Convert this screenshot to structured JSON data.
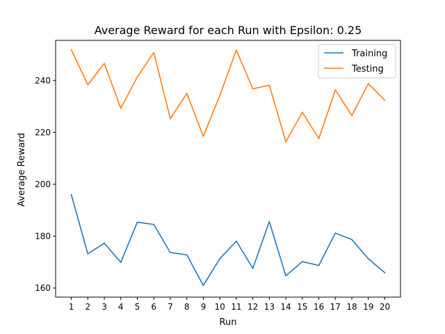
{
  "chart_data": {
    "type": "line",
    "title": "Average Reward for each Run with Epsilon: 0.25",
    "xlabel": "Run",
    "ylabel": "Average Reward",
    "x": [
      1,
      2,
      3,
      4,
      5,
      6,
      7,
      8,
      9,
      10,
      11,
      12,
      13,
      14,
      15,
      16,
      17,
      18,
      19,
      20
    ],
    "xticks": [
      "1",
      "2",
      "3",
      "4",
      "5",
      "6",
      "7",
      "8",
      "9",
      "10",
      "11",
      "12",
      "13",
      "14",
      "15",
      "16",
      "17",
      "18",
      "19",
      "20"
    ],
    "yticks": [
      160,
      180,
      200,
      220,
      240
    ],
    "xlim": [
      0.05,
      20.95
    ],
    "ylim": [
      156.5,
      255.5
    ],
    "grid": false,
    "legend_position": "top-right",
    "series": [
      {
        "name": "Training",
        "color": "#1f77b4",
        "values": [
          196.0,
          173.2,
          177.3,
          169.9,
          185.4,
          184.5,
          173.7,
          172.8,
          161.0,
          171.3,
          178.1,
          167.6,
          185.6,
          164.7,
          170.2,
          168.7,
          181.2,
          178.7,
          171.3,
          165.9
        ]
      },
      {
        "name": "Testing",
        "color": "#ff7f0e",
        "values": [
          251.9,
          238.4,
          246.6,
          229.3,
          241.4,
          250.8,
          225.3,
          235.1,
          218.5,
          234.2,
          251.7,
          236.8,
          238.2,
          216.4,
          227.8,
          217.6,
          236.4,
          226.5,
          238.8,
          232.4
        ]
      }
    ]
  }
}
